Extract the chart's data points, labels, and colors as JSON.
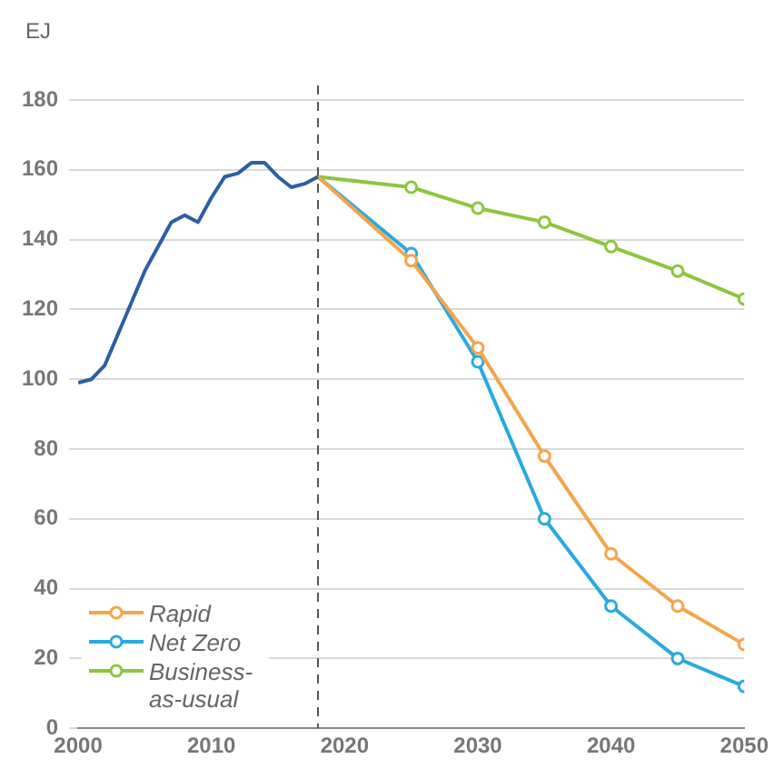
{
  "chart_data": {
    "type": "line",
    "ylabel": "EJ",
    "xlim": [
      2000,
      2050
    ],
    "xticks": [
      2000,
      2010,
      2020,
      2030,
      2040,
      2050
    ],
    "ylim": [
      0,
      180
    ],
    "yticks": [
      0,
      20,
      40,
      60,
      80,
      100,
      120,
      140,
      160,
      180
    ],
    "grid": "y",
    "legend": "bottom left",
    "marker": "circle",
    "series": [
      {
        "color": "#2b5fa6",
        "marker": "none",
        "x": [
          2000,
          2001,
          2002,
          2003,
          2004,
          2005,
          2006,
          2007,
          2008,
          2009,
          2010,
          2011,
          2012,
          2013,
          2014,
          2015,
          2016,
          2017,
          2018
        ],
        "values": [
          99,
          100,
          104,
          113,
          122,
          131,
          138,
          145,
          147,
          145,
          152,
          158,
          159,
          162,
          162,
          158,
          155,
          156,
          158
        ]
      },
      {
        "name": "Rapid",
        "color": "#f5a54a",
        "x": [
          2018,
          2025,
          2030,
          2035,
          2040,
          2045,
          2050
        ],
        "values": [
          158,
          134,
          109,
          78,
          50,
          35,
          24
        ]
      },
      {
        "name": "Net Zero",
        "color": "#29a9e1",
        "x": [
          2018,
          2025,
          2030,
          2035,
          2040,
          2045,
          2050
        ],
        "values": [
          158,
          136,
          105,
          60,
          35,
          20,
          12
        ]
      },
      {
        "name": "Business-as-usual",
        "color": "#8cc63f",
        "x": [
          2018,
          2025,
          2030,
          2035,
          2040,
          2045,
          2050
        ],
        "values": [
          158,
          155,
          149,
          145,
          138,
          131,
          123
        ]
      }
    ],
    "ref_lines": [
      {
        "axis": "x",
        "value": 2018,
        "color": "#555555",
        "line_style": "dashed"
      }
    ]
  }
}
